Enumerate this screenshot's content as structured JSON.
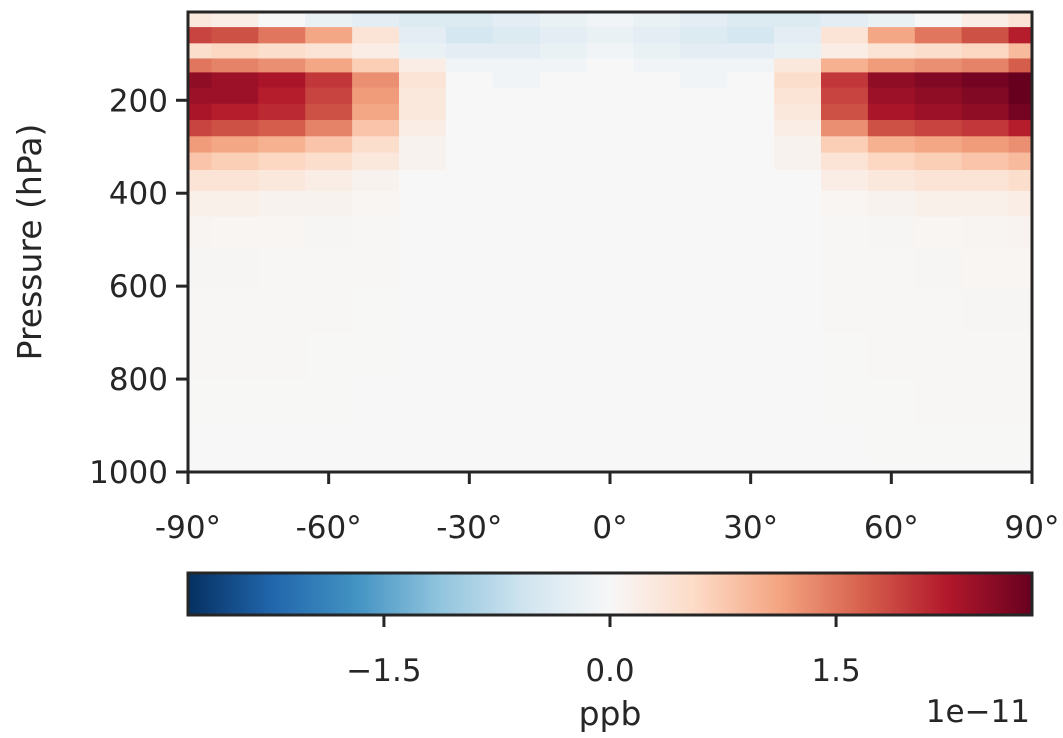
{
  "chart_data": {
    "type": "heatmap",
    "title": "",
    "ylabel": "Pressure (hPa)",
    "xlabel": "",
    "x_ticks": [
      -90,
      -60,
      -30,
      0,
      30,
      60,
      90
    ],
    "x_tick_labels": [
      "-90°",
      "-60°",
      "-30°",
      "0°",
      "30°",
      "60°",
      "90°"
    ],
    "xlim": [
      -90,
      90
    ],
    "y_ticks": [
      200,
      400,
      600,
      800,
      1000
    ],
    "y_tick_labels": [
      "200",
      "400",
      "600",
      "800",
      "1000"
    ],
    "ylim": [
      1000,
      10
    ],
    "y_inverted": true,
    "colormap": "RdBu_r",
    "grid": false,
    "colorbar": {
      "orientation": "horizontal",
      "placement": "bottom",
      "vmin": -2.8,
      "vmax": 2.8,
      "ticks": [
        -1.5,
        0.0,
        1.5
      ],
      "tick_labels": [
        "−1.5",
        "0.0",
        "1.5"
      ],
      "label": "ppb",
      "offset_text": "1e−11"
    },
    "pressure_levels": [
      25,
      60,
      95,
      125,
      155,
      190,
      225,
      260,
      295,
      330,
      370,
      420,
      480,
      560,
      650,
      750,
      850,
      950,
      1000
    ],
    "latitudes": [
      -90,
      -80,
      -70,
      -60,
      -50,
      -40,
      -30,
      -20,
      -10,
      0,
      10,
      20,
      30,
      40,
      50,
      60,
      70,
      80,
      90
    ],
    "values_units": "1e-11 ppb",
    "values": [
      [
        0.3,
        0.2,
        0.0,
        -0.2,
        -0.3,
        -0.4,
        -0.4,
        -0.3,
        -0.2,
        -0.1,
        -0.2,
        -0.3,
        -0.4,
        -0.4,
        -0.3,
        -0.2,
        0.0,
        0.2,
        0.4
      ],
      [
        1.9,
        1.8,
        1.5,
        1.1,
        0.4,
        -0.3,
        -0.5,
        -0.4,
        -0.3,
        -0.2,
        -0.3,
        -0.4,
        -0.5,
        -0.3,
        0.4,
        1.1,
        1.5,
        1.8,
        2.2
      ],
      [
        0.5,
        0.6,
        0.5,
        0.4,
        0.2,
        -0.2,
        -0.3,
        -0.3,
        -0.2,
        -0.1,
        -0.2,
        -0.3,
        -0.3,
        -0.2,
        0.2,
        0.4,
        0.5,
        0.6,
        0.9
      ],
      [
        1.5,
        1.4,
        1.3,
        1.1,
        0.7,
        0.2,
        -0.1,
        -0.1,
        -0.1,
        0.0,
        -0.1,
        -0.1,
        -0.1,
        0.3,
        1.0,
        1.2,
        1.3,
        1.4,
        1.7
      ],
      [
        2.5,
        2.4,
        2.3,
        2.0,
        1.3,
        0.4,
        0.0,
        -0.1,
        0.0,
        0.0,
        0.0,
        -0.1,
        0.0,
        0.5,
        2.0,
        2.5,
        2.6,
        2.7,
        2.9
      ],
      [
        2.4,
        2.4,
        2.2,
        1.9,
        1.2,
        0.3,
        0.0,
        0.0,
        0.0,
        0.0,
        0.0,
        0.0,
        0.0,
        0.4,
        1.9,
        2.4,
        2.5,
        2.6,
        2.8
      ],
      [
        2.3,
        2.2,
        2.1,
        1.8,
        1.1,
        0.3,
        0.0,
        0.0,
        0.0,
        0.0,
        0.0,
        0.0,
        0.0,
        0.3,
        1.8,
        2.3,
        2.4,
        2.5,
        2.7
      ],
      [
        1.9,
        1.8,
        1.7,
        1.4,
        0.8,
        0.2,
        0.0,
        0.0,
        0.0,
        0.0,
        0.0,
        0.0,
        0.0,
        0.2,
        1.3,
        1.8,
        1.9,
        2.0,
        2.2
      ],
      [
        1.2,
        1.1,
        1.0,
        0.8,
        0.5,
        0.1,
        0.0,
        0.0,
        0.0,
        0.0,
        0.0,
        0.0,
        0.0,
        0.1,
        0.7,
        1.0,
        1.1,
        1.2,
        1.3
      ],
      [
        0.8,
        0.7,
        0.6,
        0.5,
        0.3,
        0.1,
        0.0,
        0.0,
        0.0,
        0.0,
        0.0,
        0.0,
        0.0,
        0.1,
        0.4,
        0.6,
        0.7,
        0.8,
        0.9
      ],
      [
        0.4,
        0.4,
        0.3,
        0.2,
        0.1,
        0.0,
        0.0,
        0.0,
        0.0,
        0.0,
        0.0,
        0.0,
        0.0,
        0.0,
        0.2,
        0.3,
        0.4,
        0.4,
        0.5
      ],
      [
        0.15,
        0.15,
        0.1,
        0.1,
        0.05,
        0.0,
        0.0,
        0.0,
        0.0,
        0.0,
        0.0,
        0.0,
        0.0,
        0.0,
        0.05,
        0.1,
        0.15,
        0.15,
        0.2
      ],
      [
        0.06,
        0.05,
        0.05,
        0.04,
        0.03,
        0.0,
        0.0,
        0.0,
        0.0,
        0.0,
        0.0,
        0.0,
        0.0,
        0.0,
        0.03,
        0.04,
        0.05,
        0.06,
        0.08
      ],
      [
        0.04,
        0.04,
        0.03,
        0.03,
        0.02,
        0.0,
        0.0,
        0.0,
        0.0,
        0.0,
        0.0,
        0.0,
        0.0,
        0.0,
        0.02,
        0.03,
        0.04,
        0.05,
        0.05
      ],
      [
        0.03,
        0.03,
        0.03,
        0.02,
        0.01,
        0.0,
        0.0,
        0.0,
        0.0,
        0.0,
        0.0,
        0.0,
        0.0,
        0.0,
        0.02,
        0.03,
        0.03,
        0.04,
        0.04
      ],
      [
        0.02,
        0.02,
        0.02,
        0.01,
        0.01,
        0.0,
        0.0,
        0.0,
        0.0,
        0.0,
        0.0,
        0.0,
        0.0,
        0.0,
        0.01,
        0.02,
        0.03,
        0.03,
        0.03
      ],
      [
        0.01,
        0.01,
        0.01,
        0.01,
        0.0,
        0.0,
        0.0,
        0.0,
        0.0,
        0.0,
        0.0,
        0.0,
        0.0,
        0.0,
        0.01,
        0.01,
        0.02,
        0.02,
        0.02
      ],
      [
        0.0,
        0.0,
        0.0,
        0.0,
        0.0,
        0.0,
        0.0,
        0.0,
        0.0,
        0.0,
        0.0,
        0.0,
        0.0,
        0.0,
        0.0,
        0.01,
        0.01,
        0.01,
        0.01
      ],
      [
        0.0,
        0.0,
        0.0,
        0.0,
        0.0,
        0.0,
        0.0,
        0.0,
        0.0,
        0.0,
        0.0,
        0.0,
        0.0,
        0.0,
        0.0,
        0.0,
        0.0,
        0.0,
        0.0
      ]
    ]
  }
}
